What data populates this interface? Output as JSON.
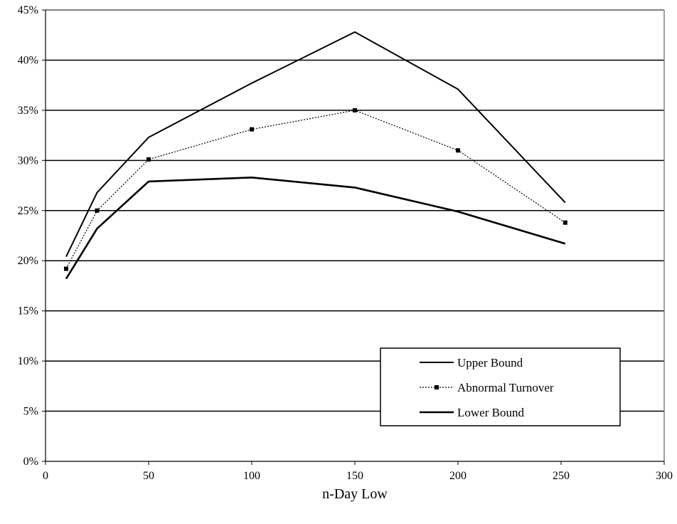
{
  "chart_data": {
    "type": "line",
    "title": "",
    "xlabel": "n-Day Low",
    "ylabel": "",
    "xlim": [
      0,
      300
    ],
    "ylim": [
      0,
      45
    ],
    "x_ticks": [
      0,
      50,
      100,
      150,
      200,
      250,
      300
    ],
    "x_tick_labels": [
      "0",
      "50",
      "100",
      "150",
      "200",
      "250",
      "300"
    ],
    "y_ticks": [
      0,
      5,
      10,
      15,
      20,
      25,
      30,
      35,
      40,
      45
    ],
    "y_tick_labels": [
      "0%",
      "5%",
      "10%",
      "15%",
      "20%",
      "25%",
      "30%",
      "35%",
      "40%",
      "45%"
    ],
    "grid": "horizontal",
    "legend_position": "bottom-right",
    "series": [
      {
        "name": "Upper Bound",
        "x": [
          10,
          25,
          50,
          100,
          150,
          200,
          252
        ],
        "values": [
          20.4,
          26.8,
          32.3,
          37.7,
          42.8,
          37.1,
          25.8
        ],
        "color": "#000000",
        "line_style": "solid",
        "marker": "none"
      },
      {
        "name": "Abnormal Turnover",
        "x": [
          10,
          25,
          50,
          100,
          150,
          200,
          252
        ],
        "values": [
          19.2,
          25.0,
          30.1,
          33.1,
          35.0,
          31.0,
          23.8
        ],
        "color": "#000000",
        "line_style": "dotted",
        "marker": "square"
      },
      {
        "name": "Lower Bound",
        "x": [
          10,
          25,
          50,
          100,
          150,
          200,
          252
        ],
        "values": [
          18.2,
          23.2,
          27.9,
          28.3,
          27.3,
          24.9,
          21.7
        ],
        "color": "#000000",
        "line_style": "solid",
        "marker": "none"
      }
    ]
  }
}
